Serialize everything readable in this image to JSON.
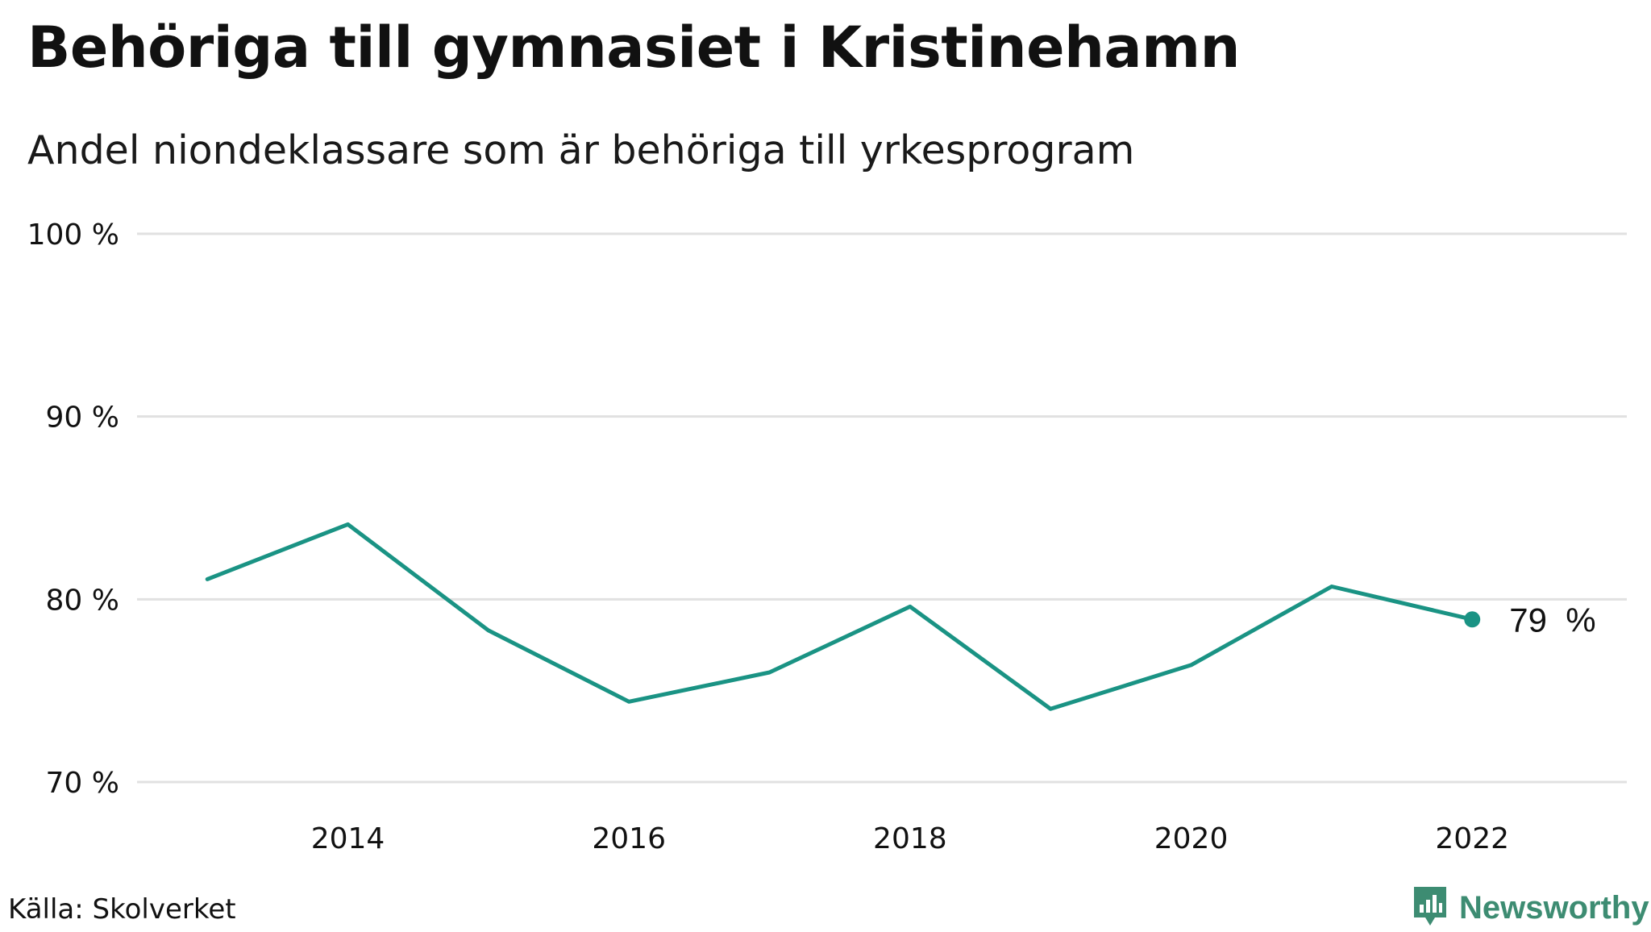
{
  "title": "Behöriga till gymnasiet i Kristinehamn",
  "subtitle": "Andel niondeklassare som är behöriga till yrkesprogram",
  "source": "Källa: Skolverket",
  "brand": {
    "name": "Newsworthy",
    "color": "#3d8c72",
    "icon": "newsworthy-logo-icon"
  },
  "colors": {
    "line": "#1a9384",
    "grid": "#e1e1e1"
  },
  "chart_data": {
    "type": "line",
    "title": "Behöriga till gymnasiet i Kristinehamn",
    "subtitle": "Andel niondeklassare som är behöriga till yrkesprogram",
    "x": [
      2013,
      2014,
      2015,
      2016,
      2017,
      2018,
      2019,
      2020,
      2021,
      2022
    ],
    "series": [
      {
        "values": [
          81.1,
          84.1,
          78.3,
          74.4,
          76.0,
          79.6,
          74.0,
          76.4,
          80.7,
          78.9
        ]
      }
    ],
    "xlim": [
      2012.5,
      2023.1
    ],
    "ylim": [
      70,
      100
    ],
    "x_ticks": [
      2014,
      2016,
      2018,
      2020,
      2022
    ],
    "x_tick_labels": [
      "2014",
      "2016",
      "2018",
      "2020",
      "2022"
    ],
    "y_ticks": [
      70,
      80,
      90,
      100
    ],
    "y_tick_labels": [
      "70 %",
      "80 %",
      "90 %",
      "100 %"
    ],
    "end_label": "79  %",
    "grid": "horizontal",
    "legend": "none",
    "xlabel": "",
    "ylabel": ""
  }
}
